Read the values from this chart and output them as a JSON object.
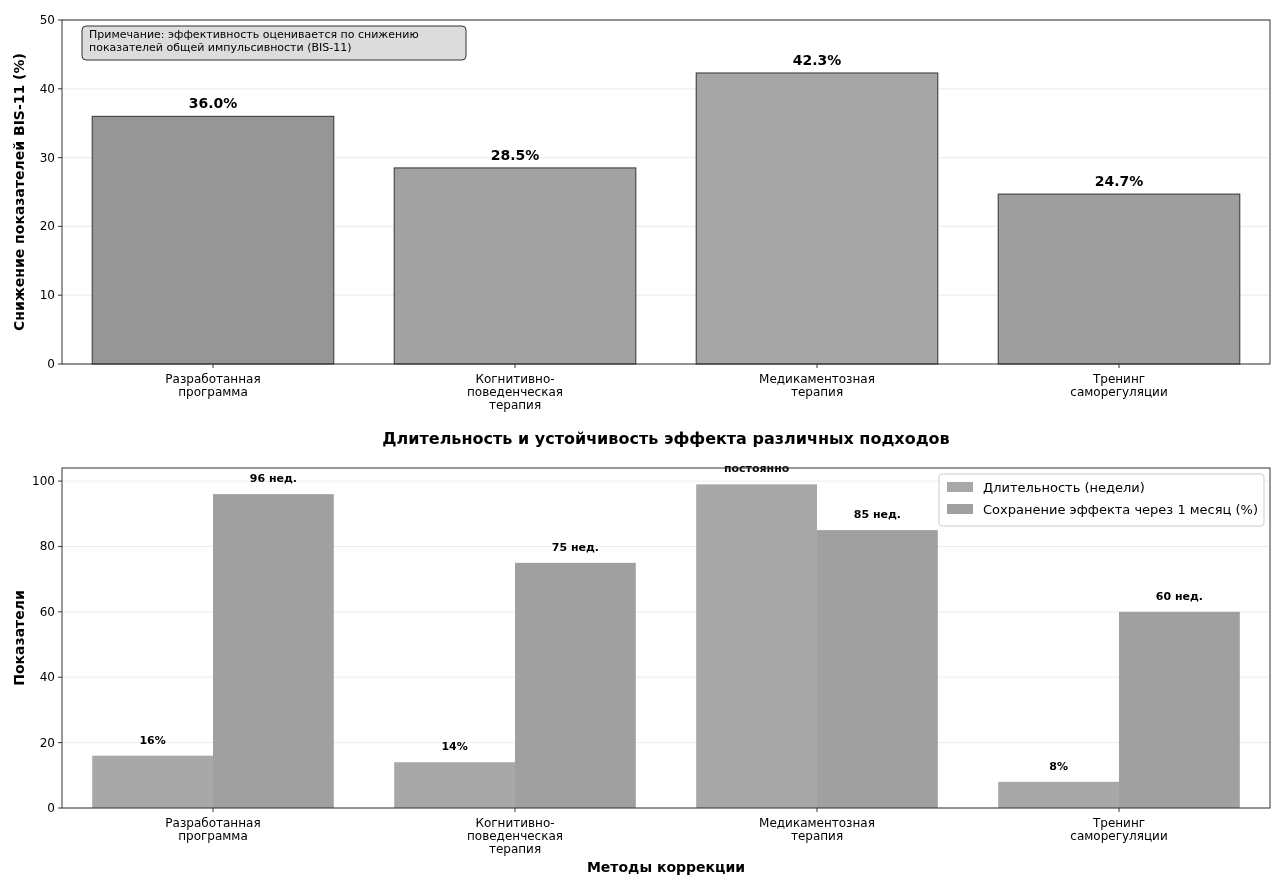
{
  "chart_data": [
    {
      "type": "bar",
      "ylabel": "Снижение показателей BIS-11 (%)",
      "categories": [
        "Разработанная\nпрограмма",
        "Когнитивно-\nповеденческая\nтерапия",
        "Медикаментозная\nтерапия",
        "Тренинг\nсаморегуляции"
      ],
      "values": [
        36.0,
        28.5,
        42.3,
        24.7
      ],
      "colors": [
        "#969696",
        "#a2a2a2",
        "#a6a6a6",
        "#9e9e9e"
      ],
      "value_labels": [
        "36.0%",
        "28.5%",
        "42.3%",
        "24.7%"
      ],
      "ylim": [
        0,
        50
      ],
      "yticks": [
        0,
        10,
        20,
        30,
        40,
        50
      ],
      "grid": "y",
      "annotations": [
        "Примечание: эффективность оценивается по снижению\nпоказателей общей импульсивности (BIS-11)"
      ]
    },
    {
      "type": "bar",
      "title": "Длительность и устойчивость эффекта различных подходов",
      "xlabel": "Методы коррекции",
      "ylabel": "Показатели",
      "categories": [
        "Разработанная\nпрограмма",
        "Когнитивно-\nповеденческая\nтерапия",
        "Медикаментозная\nтерапия",
        "Тренинг\nсаморегуляции"
      ],
      "series": [
        {
          "name": "Длительность (недели)",
          "color": "#a8a8a8",
          "values": [
            16,
            14,
            99,
            8
          ],
          "value_labels": [
            "16%",
            "14%",
            "постоянно",
            "8%"
          ]
        },
        {
          "name": "Сохранение эффекта через 1 месяц (%)",
          "color": "#a0a0a0",
          "values": [
            96,
            75,
            85,
            60
          ],
          "value_labels": [
            "96 нед.",
            "75 нед.",
            "85 нед.",
            "60 нед."
          ]
        }
      ],
      "ylim": [
        0,
        104
      ],
      "yticks": [
        0,
        20,
        40,
        60,
        80,
        100
      ],
      "grid": "y",
      "legend": "top right"
    }
  ]
}
